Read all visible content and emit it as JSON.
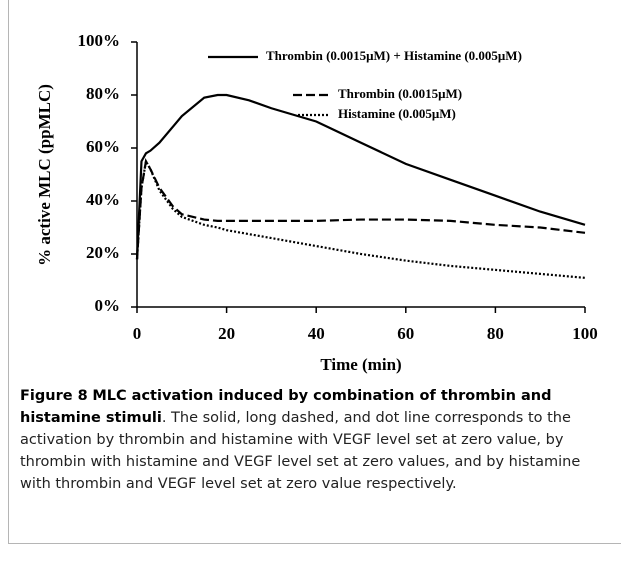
{
  "chart_data": {
    "type": "line",
    "x_label": "Time (min)",
    "y_label": "% active MLC (ppMLC)",
    "x": [
      0,
      1,
      2,
      3,
      5,
      8,
      10,
      15,
      18,
      20,
      25,
      30,
      40,
      50,
      60,
      70,
      80,
      90,
      100
    ],
    "series": [
      {
        "name": "Thrombin (0.0015μM) + Histamine (0.005μM)",
        "color": "#000000",
        "line_style": "solid",
        "values": [
          18,
          55,
          58,
          59,
          62,
          68,
          72,
          79,
          80,
          80,
          78,
          75,
          70,
          62,
          54,
          48,
          42,
          36,
          31
        ]
      },
      {
        "name": "Thrombin (0.0015μM)",
        "color": "#000000",
        "line_style": "dashed",
        "values": [
          18,
          45,
          55,
          52,
          45,
          38,
          35,
          33,
          32.5,
          32.5,
          32.5,
          32.5,
          32.5,
          33,
          33,
          32.5,
          31,
          30,
          28
        ]
      },
      {
        "name": "Histamine (0.005μM)",
        "color": "#000000",
        "line_style": "dotted",
        "values": [
          18,
          45,
          55,
          52,
          44,
          37,
          34,
          31,
          30,
          29,
          27.5,
          26,
          23,
          20,
          17.5,
          15.5,
          14,
          12.5,
          11
        ]
      }
    ],
    "xlim": [
      0,
      100
    ],
    "xticks": [
      0,
      20,
      40,
      60,
      80,
      100
    ],
    "ylim": [
      0,
      100
    ],
    "yticks": [
      {
        "value": 0,
        "label": "0%"
      },
      {
        "value": 20,
        "label": "20%"
      },
      {
        "value": 40,
        "label": "40%"
      },
      {
        "value": 60,
        "label": "60%"
      },
      {
        "value": 80,
        "label": "80%"
      },
      {
        "value": 100,
        "label": "100%"
      }
    ],
    "grid": false
  },
  "caption": {
    "label": "Figure 8",
    "title": "MLC activation induced by combination of thrombin and histamine stimuli",
    "text": ". The solid, long dashed, and dot line corresponds to the activation by thrombin and histamine with VEGF level set at zero value, by thrombin with histamine and VEGF level set at zero values, and by histamine with thrombin and VEGF level set at zero value respectively."
  }
}
